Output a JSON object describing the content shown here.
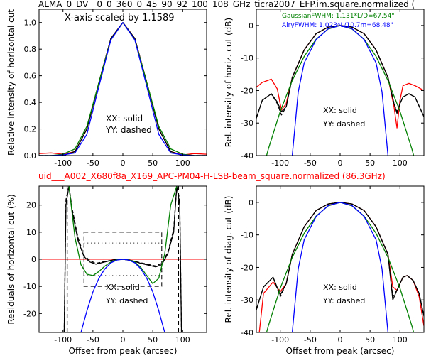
{
  "figure": {
    "top_title": "ALMA_0_DV__0_0_360_0_45_90_92_100_108_GHz_ticra2007_EFP.im.square.normalized (",
    "mid_title": "uid___A002_X680f8a_X169_APC-PM04-H-LSB-beam_square.normalized (86.3GHz)",
    "mid_title_color": "#ff0000"
  },
  "chart_data": [
    {
      "type": "line",
      "panel": "top-left",
      "title": "",
      "annotation": "X-axis scaled by 1.1589",
      "xlabel": "",
      "ylabel": "Relative intensity of horizontal cut",
      "xlim": [
        -140,
        140
      ],
      "ylim": [
        0.0,
        1.1
      ],
      "xticks": [
        -100,
        -50,
        0,
        50,
        100
      ],
      "yticks": [
        0.0,
        0.2,
        0.4,
        0.6,
        0.8,
        1.0
      ],
      "ytick_labels": [
        "0.0",
        "0.2",
        "0.4",
        "0.6",
        "0.8",
        "1.0"
      ],
      "legend_notes": [
        "XX: solid",
        "YY: dashed"
      ],
      "series": [
        {
          "color": "#ff0000",
          "style": "solid",
          "x": [
            -140,
            -120,
            -100,
            -80,
            -60,
            -40,
            -20,
            0,
            20,
            40,
            60,
            80,
            100,
            120,
            140
          ],
          "y": [
            0.015,
            0.02,
            0.01,
            0.03,
            0.2,
            0.55,
            0.88,
            1.0,
            0.88,
            0.55,
            0.2,
            0.03,
            0.005,
            0.015,
            0.01
          ]
        },
        {
          "color": "#000000",
          "style": "solid",
          "x": [
            -140,
            -120,
            -100,
            -80,
            -60,
            -40,
            -20,
            0,
            20,
            40,
            60,
            80,
            100,
            120,
            140
          ],
          "y": [
            0.0,
            0.0,
            0.0,
            0.03,
            0.2,
            0.55,
            0.88,
            1.0,
            0.88,
            0.55,
            0.2,
            0.03,
            0.0,
            0.0,
            0.0
          ]
        },
        {
          "color": "#000000",
          "style": "dashed",
          "x": [
            -140,
            -120,
            -100,
            -80,
            -60,
            -40,
            -20,
            0,
            20,
            40,
            60,
            80,
            100,
            120,
            140
          ],
          "y": [
            0.0,
            0.0,
            0.0,
            0.03,
            0.2,
            0.55,
            0.88,
            1.0,
            0.88,
            0.55,
            0.2,
            0.03,
            0.0,
            0.0,
            0.0
          ]
        },
        {
          "color": "#008000",
          "style": "solid",
          "x": [
            -140,
            -120,
            -100,
            -80,
            -60,
            -40,
            -20,
            0,
            20,
            40,
            60,
            80,
            100,
            120,
            140
          ],
          "y": [
            0.0,
            0.0,
            0.01,
            0.05,
            0.22,
            0.55,
            0.87,
            1.0,
            0.87,
            0.55,
            0.22,
            0.05,
            0.01,
            0.0,
            0.0
          ]
        },
        {
          "color": "#0000ff",
          "style": "solid",
          "x": [
            -140,
            -120,
            -100,
            -80,
            -60,
            -40,
            -20,
            0,
            20,
            40,
            60,
            80,
            100,
            120,
            140
          ],
          "y": [
            0.0,
            0.0,
            0.005,
            0.02,
            0.16,
            0.52,
            0.87,
            1.0,
            0.87,
            0.52,
            0.16,
            0.02,
            0.005,
            0.0,
            0.0
          ]
        }
      ]
    },
    {
      "type": "line",
      "panel": "top-right",
      "title": "",
      "xlabel": "",
      "ylabel": "Rel. intensity of horiz. cut (dB)",
      "xlim": [
        -140,
        140
      ],
      "ylim": [
        -40,
        5
      ],
      "xticks": [
        -100,
        -50,
        0,
        50,
        100
      ],
      "yticks": [
        -40,
        -30,
        -20,
        -10,
        0
      ],
      "annotations": [
        {
          "text": "GaussianFWHM: 1.131*L/D=67.54\"",
          "color": "#008000"
        },
        {
          "text": "AiryFWHM: 1.023*L/10.7m=68.48\"",
          "color": "#0000ff"
        }
      ],
      "legend_notes": [
        "XX: solid",
        "YY: dashed"
      ],
      "series": [
        {
          "color": "#ff0000",
          "style": "solid",
          "x": [
            -140,
            -130,
            -115,
            -105,
            -98,
            -90,
            -80,
            -60,
            -40,
            -20,
            0,
            20,
            40,
            60,
            80,
            90,
            95,
            100,
            105,
            115,
            125,
            140
          ],
          "y": [
            -19,
            -17.5,
            -16.5,
            -19.5,
            -26,
            -24,
            -16,
            -7.5,
            -2.5,
            -0.5,
            0,
            -0.5,
            -2.5,
            -7.5,
            -16,
            -25,
            -31.5,
            -23,
            -18.5,
            -17.8,
            -18.5,
            -20
          ]
        },
        {
          "color": "#000000",
          "style": "solid",
          "x": [
            -140,
            -130,
            -115,
            -105,
            -98,
            -90,
            -80,
            -60,
            -40,
            -20,
            0,
            20,
            40,
            60,
            80,
            90,
            95,
            100,
            105,
            115,
            125,
            140
          ],
          "y": [
            -28.5,
            -23,
            -21,
            -23.5,
            -26.5,
            -25,
            -16,
            -7.5,
            -2.5,
            -0.5,
            0,
            -0.5,
            -2.5,
            -7.5,
            -16,
            -24,
            -27,
            -24,
            -22,
            -21,
            -22,
            -28
          ]
        },
        {
          "color": "#000000",
          "style": "dashed",
          "x": [
            -140,
            -130,
            -115,
            -105,
            -98,
            -90,
            -80,
            -60,
            -40,
            -20,
            0,
            20,
            40,
            60,
            80,
            90,
            95,
            100,
            105,
            115,
            125,
            140
          ],
          "y": [
            -28.5,
            -23,
            -21,
            -24,
            -27.5,
            -25,
            -16,
            -7.5,
            -2.5,
            -0.5,
            0,
            -0.5,
            -2.5,
            -7.5,
            -16,
            -24,
            -26.5,
            -24,
            -22,
            -21,
            -22,
            -28
          ]
        },
        {
          "color": "#008000",
          "style": "solid",
          "x": [
            -140,
            -120,
            -100,
            -80,
            -60,
            -40,
            -20,
            0,
            20,
            40,
            60,
            80,
            100,
            120,
            140
          ],
          "y": [
            -51.8,
            -38.0,
            -26.4,
            -16.9,
            -9.5,
            -4.2,
            -1.1,
            0,
            -1.1,
            -4.2,
            -9.5,
            -16.9,
            -26.4,
            -38.0,
            -51.8
          ]
        },
        {
          "color": "#0000ff",
          "style": "solid",
          "x": [
            -80,
            -70,
            -60,
            -40,
            -20,
            0,
            20,
            40,
            60,
            70,
            80
          ],
          "y": [
            -40,
            -20.4,
            -11.5,
            -4.3,
            -1.0,
            0,
            -1.0,
            -4.3,
            -11.5,
            -20.4,
            -40
          ]
        }
      ]
    },
    {
      "type": "line",
      "panel": "bottom-left",
      "title": "",
      "xlabel": "Offset from peak (arcsec)",
      "ylabel": "Residuals of horizontal cut (%)",
      "xlim": [
        -140,
        140
      ],
      "ylim": [
        -27,
        27
      ],
      "xticks": [
        -100,
        -50,
        0,
        50,
        100
      ],
      "yticks": [
        -20,
        -10,
        0,
        10,
        20
      ],
      "legend_notes": [
        "XX: solid",
        "YY: dashed"
      ],
      "reference_lines": {
        "zero_line": {
          "y": 0,
          "color": "#ff0000"
        },
        "dashed_box": {
          "x": [
            -65,
            65
          ],
          "y": [
            -10,
            10
          ]
        },
        "dotted_box": {
          "x": [
            -65,
            65
          ],
          "y": [
            -6,
            6
          ]
        },
        "vertical_dashed": [
          -93,
          93
        ]
      },
      "series": [
        {
          "color": "#000000",
          "style": "solid",
          "x": [
            -98,
            -95,
            -90,
            -85,
            -75,
            -65,
            -55,
            -45,
            -30,
            -15,
            0,
            15,
            30,
            45,
            55,
            65,
            75,
            85,
            90,
            95,
            98
          ],
          "y": [
            -27,
            20,
            27,
            18,
            7,
            1,
            -1,
            -1.8,
            -1,
            -0.2,
            0,
            -0.5,
            -1.5,
            -2.3,
            -2.8,
            -2,
            2,
            10,
            27,
            20,
            -27
          ]
        },
        {
          "color": "#000000",
          "style": "dashed",
          "x": [
            -98,
            -95,
            -90,
            -85,
            -75,
            -65,
            -55,
            -45,
            -30,
            -15,
            0,
            15,
            30,
            45,
            55,
            65,
            75,
            85,
            90,
            95,
            98
          ],
          "y": [
            -27,
            22,
            27,
            19,
            8,
            1.5,
            -0.5,
            -1.5,
            -0.8,
            -0.2,
            0,
            -0.5,
            -1.3,
            -2,
            -2.5,
            -1.5,
            2.5,
            11,
            27,
            22,
            -27
          ]
        },
        {
          "color": "#008000",
          "style": "solid",
          "x": [
            -90,
            -80,
            -70,
            -60,
            -50,
            -40,
            -30,
            -20,
            -10,
            0,
            10,
            20,
            30,
            40,
            50,
            60,
            70,
            80,
            90
          ],
          "y": [
            27,
            8,
            -2,
            -5.5,
            -6,
            -4.5,
            -2.5,
            -1,
            -0.2,
            0,
            -0.2,
            -1,
            -3,
            -6,
            -9,
            -7,
            2,
            20,
            27
          ]
        },
        {
          "color": "#0000ff",
          "style": "solid",
          "x": [
            -70,
            -60,
            -50,
            -40,
            -30,
            -20,
            -10,
            0,
            10,
            20,
            30,
            40,
            50,
            60,
            70
          ],
          "y": [
            -27,
            -19,
            -12,
            -7,
            -3.5,
            -1.3,
            -0.3,
            0,
            -0.3,
            -1.3,
            -3.5,
            -7,
            -12,
            -19,
            -27
          ]
        }
      ]
    },
    {
      "type": "line",
      "panel": "bottom-right",
      "title": "",
      "xlabel": "Offset from peak (arcsec)",
      "ylabel": "Rel. intensity of diag. cut (dB)",
      "xlim": [
        -140,
        140
      ],
      "ylim": [
        -40,
        5
      ],
      "xticks": [
        -100,
        -50,
        0,
        50,
        100
      ],
      "yticks": [
        -40,
        -30,
        -20,
        -10,
        0
      ],
      "legend_notes": [
        "XX: solid",
        "YY: dashed"
      ],
      "series": [
        {
          "color": "#ff0000",
          "style": "solid",
          "x": [
            -135,
            -128,
            -112,
            -100,
            -90,
            -80,
            -60,
            -40,
            -20,
            0,
            20,
            40,
            60,
            80,
            88,
            95,
            105,
            112,
            122,
            132,
            140
          ],
          "y": [
            -40,
            -28,
            -24.5,
            -27.5,
            -25,
            -16,
            -7.5,
            -2.5,
            -0.5,
            0,
            -0.5,
            -2.5,
            -7.5,
            -16,
            -26,
            -27,
            -23,
            -22.5,
            -24,
            -29,
            -38
          ]
        },
        {
          "color": "#000000",
          "style": "solid",
          "x": [
            -140,
            -128,
            -112,
            -100,
            -90,
            -80,
            -60,
            -40,
            -20,
            0,
            20,
            40,
            60,
            80,
            88,
            95,
            105,
            112,
            122,
            132,
            140
          ],
          "y": [
            -33,
            -26,
            -23,
            -28.5,
            -25,
            -16,
            -7.5,
            -2.5,
            -0.5,
            0,
            -0.5,
            -2.5,
            -7.5,
            -16,
            -30,
            -27,
            -23,
            -22.5,
            -24,
            -28,
            -35
          ]
        },
        {
          "color": "#000000",
          "style": "dashed",
          "x": [
            -140,
            -128,
            -112,
            -100,
            -90,
            -80,
            -60,
            -40,
            -20,
            0,
            20,
            40,
            60,
            80,
            88,
            95,
            105,
            112,
            122,
            132,
            140
          ],
          "y": [
            -33,
            -26,
            -23,
            -29,
            -25,
            -16,
            -7.5,
            -2.5,
            -0.5,
            0,
            -0.5,
            -2.5,
            -7.5,
            -16,
            -29,
            -27,
            -23,
            -22.5,
            -24,
            -28,
            -35
          ]
        },
        {
          "color": "#008000",
          "style": "solid",
          "x": [
            -140,
            -120,
            -100,
            -80,
            -60,
            -40,
            -20,
            0,
            20,
            40,
            60,
            80,
            100,
            120,
            140
          ],
          "y": [
            -51.8,
            -38.0,
            -26.4,
            -16.9,
            -9.5,
            -4.2,
            -1.1,
            0,
            -1.1,
            -4.2,
            -9.5,
            -16.9,
            -26.4,
            -38.0,
            -51.8
          ]
        },
        {
          "color": "#0000ff",
          "style": "solid",
          "x": [
            -80,
            -70,
            -60,
            -40,
            -20,
            0,
            20,
            40,
            60,
            70,
            80
          ],
          "y": [
            -40,
            -20.4,
            -11.5,
            -4.3,
            -1.0,
            0,
            -1.0,
            -4.3,
            -11.5,
            -20.4,
            -40
          ]
        }
      ]
    }
  ]
}
